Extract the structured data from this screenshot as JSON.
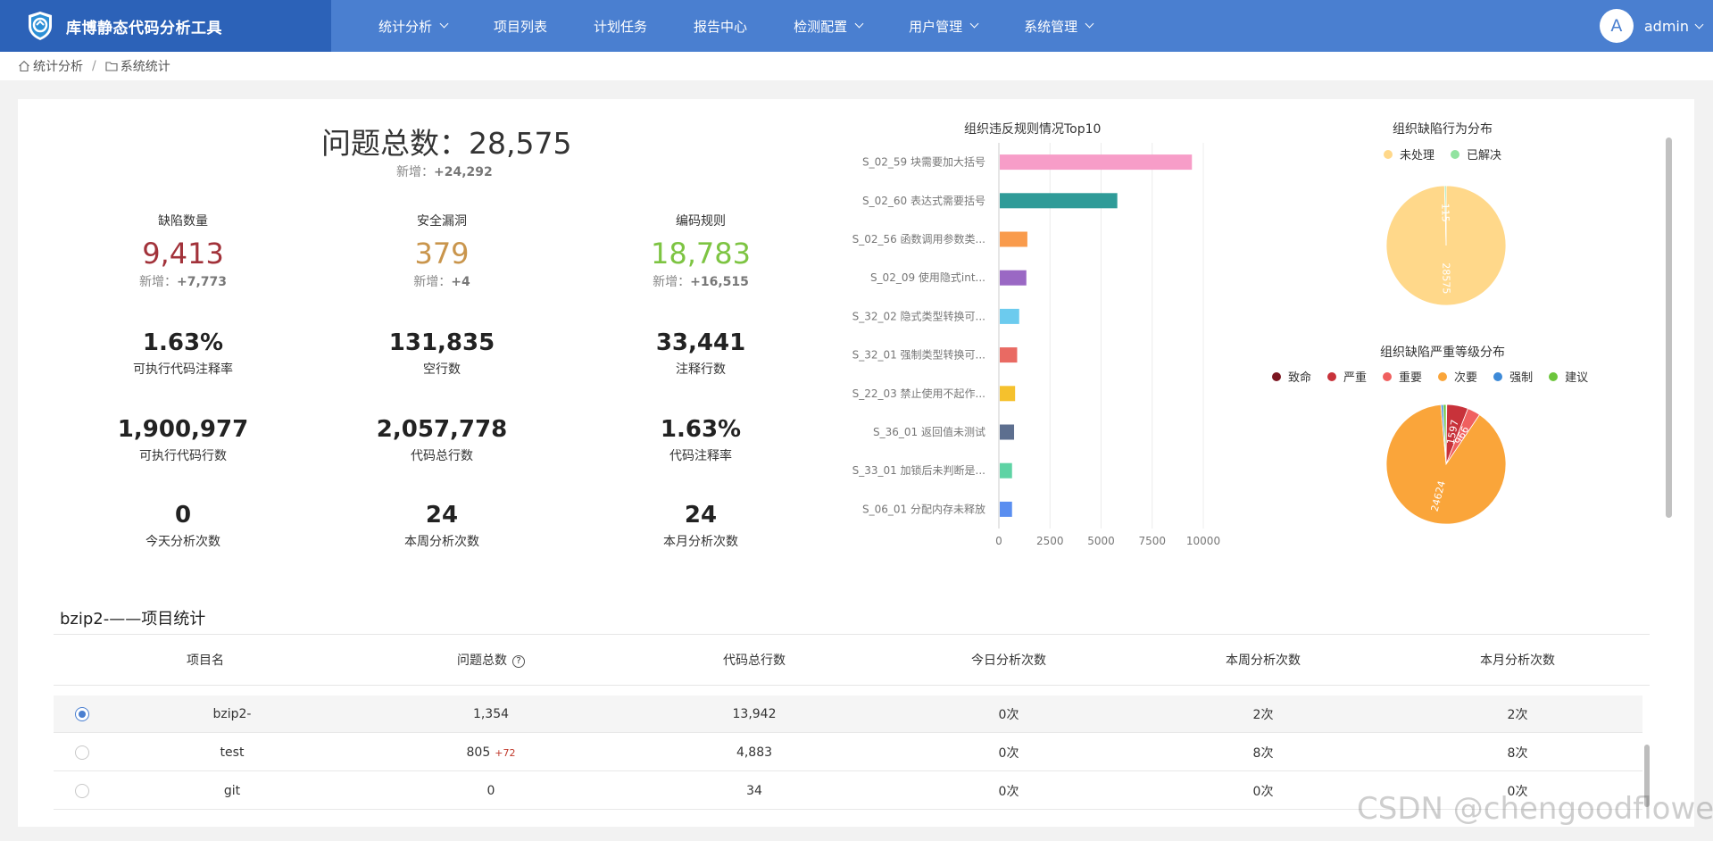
{
  "app": {
    "title": "库博静态代码分析工具"
  },
  "nav": [
    {
      "label": "统计分析",
      "dropdown": true
    },
    {
      "label": "项目列表",
      "dropdown": false
    },
    {
      "label": "计划任务",
      "dropdown": false
    },
    {
      "label": "报告中心",
      "dropdown": false
    },
    {
      "label": "检测配置",
      "dropdown": true
    },
    {
      "label": "用户管理",
      "dropdown": true
    },
    {
      "label": "系统管理",
      "dropdown": true
    }
  ],
  "user": {
    "avatar": "A",
    "name": "admin"
  },
  "breadcrumb": {
    "root": "统计分析",
    "sep": "/",
    "current": "系统统计"
  },
  "summary": {
    "total_label": "问题总数：",
    "total_value": "28,575",
    "new_label": "新增：",
    "new_value": "+24,292"
  },
  "kpis": [
    {
      "label": "缺陷数量",
      "value": "9,413",
      "new_label": "新增：",
      "new_value": "+7,773",
      "color": "#a2323a"
    },
    {
      "label": "安全漏洞",
      "value": "379",
      "new_label": "新增：",
      "new_value": "+4",
      "color": "#c9954c"
    },
    {
      "label": "编码规则",
      "value": "18,783",
      "new_label": "新增：",
      "new_value": "+16,515",
      "color": "#7dc442"
    }
  ],
  "stats": [
    {
      "value": "1.63%",
      "label": "可执行代码注释率"
    },
    {
      "value": "131,835",
      "label": "空行数"
    },
    {
      "value": "33,441",
      "label": "注释行数"
    },
    {
      "value": "1,900,977",
      "label": "可执行代码行数"
    },
    {
      "value": "2,057,778",
      "label": "代码总行数"
    },
    {
      "value": "1.63%",
      "label": "代码注释率"
    },
    {
      "value": "0",
      "label": "今天分析次数"
    },
    {
      "value": "24",
      "label": "本周分析次数"
    },
    {
      "value": "24",
      "label": "本月分析次数"
    }
  ],
  "chart_data": [
    {
      "type": "bar",
      "orientation": "horizontal",
      "title": "组织违反规则情况Top10",
      "categories": [
        "S_02_59 块需要加大括号",
        "S_02_60 表达式需要括号",
        "S_02_56 函数调用参数类...",
        "S_02_09 使用隐式int...",
        "S_32_02 隐式类型转换可...",
        "S_32_01 强制类型转换可...",
        "S_22_03 禁止使用不起作...",
        "S_36_01 返回值未测试",
        "S_33_01 加锁后未判断是...",
        "S_06_01 分配内存未释放"
      ],
      "values": [
        9400,
        5750,
        1350,
        1300,
        950,
        850,
        750,
        700,
        600,
        600
      ],
      "colors": [
        "#f79dc8",
        "#2f9b98",
        "#f99b4c",
        "#9a68c4",
        "#6ccbee",
        "#e96a63",
        "#f5c12d",
        "#5d6f8f",
        "#5ed3a4",
        "#5a8ef0"
      ],
      "xlim": [
        0,
        10000
      ],
      "xticks": [
        "0",
        "2500",
        "5000",
        "7500",
        "10000"
      ]
    },
    {
      "type": "pie",
      "title": "组织缺陷行为分布",
      "labels": [
        "未处理",
        "已解决"
      ],
      "values": [
        28575,
        115
      ],
      "colors": [
        "#ffd88a",
        "#91e3a0"
      ],
      "legend": "top"
    },
    {
      "type": "pie",
      "title": "组织缺陷严重等级分布",
      "labels": [
        "致命",
        "严重",
        "重要",
        "次要",
        "强制",
        "建议"
      ],
      "values": [
        50,
        1597,
        966,
        24624,
        170,
        210
      ],
      "colors": [
        "#7b1520",
        "#c8323a",
        "#f0605f",
        "#faa53a",
        "#3d8ad8",
        "#6cc53c"
      ],
      "slice_labels": [
        "",
        "1597",
        "966",
        "24624",
        "",
        ""
      ],
      "legend": "top"
    }
  ],
  "project": {
    "title": "bzip2-——项目统计",
    "columns": [
      "项目名",
      "问题总数",
      "代码总行数",
      "今日分析次数",
      "本周分析次数",
      "本月分析次数"
    ],
    "rows": [
      {
        "name": "bzip2-",
        "issues": "1,354",
        "issues_new": "",
        "lines": "13,942",
        "today": "0次",
        "week": "2次",
        "month": "2次",
        "selected": true
      },
      {
        "name": "test",
        "issues": "805",
        "issues_new": "+72",
        "lines": "4,883",
        "today": "0次",
        "week": "8次",
        "month": "8次",
        "selected": false
      },
      {
        "name": "git",
        "issues": "0",
        "issues_new": "",
        "lines": "34",
        "today": "0次",
        "week": "0次",
        "month": "0次",
        "selected": false
      }
    ]
  },
  "watermark": "CSDN @chengoodflower"
}
